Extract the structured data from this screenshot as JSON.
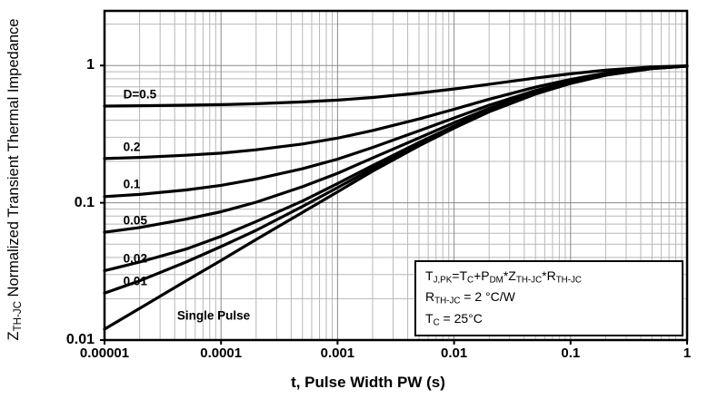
{
  "chart_data": {
    "type": "line",
    "title": "",
    "xlabel": "t, Pulse Width PW (s)",
    "ylabel_rich": [
      {
        "t": "Z"
      },
      {
        "t": "TH-JC",
        "sub": true
      },
      {
        "t": " Normalized Transient Thermal Impedance"
      }
    ],
    "grid": true,
    "x_axis": {
      "scale": "log",
      "min": 1e-05,
      "max": 1,
      "ticks": [
        {
          "v": 1e-05,
          "label": "0.00001"
        },
        {
          "v": 0.0001,
          "label": "0.0001"
        },
        {
          "v": 0.001,
          "label": "0.001"
        },
        {
          "v": 0.01,
          "label": "0.01"
        },
        {
          "v": 0.1,
          "label": "0.1"
        },
        {
          "v": 1,
          "label": "1"
        }
      ]
    },
    "y_axis": {
      "scale": "log",
      "min": 0.01,
      "max": 2.5,
      "ticks": [
        {
          "v": 1,
          "label": "1"
        },
        {
          "v": 0.1,
          "label": "0.1"
        },
        {
          "v": 0.01,
          "label": "0.01"
        }
      ]
    },
    "x": [
      1e-05,
      2e-05,
      5e-05,
      0.0001,
      0.0002,
      0.0005,
      0.001,
      0.002,
      0.005,
      0.01,
      0.02,
      0.05,
      0.1,
      0.2,
      0.5,
      1
    ],
    "series": [
      {
        "name": "D=0.5",
        "label_x": 1.45e-05,
        "label_y": 0.62,
        "values": [
          0.506,
          0.509,
          0.514,
          0.519,
          0.527,
          0.543,
          0.56,
          0.585,
          0.63,
          0.675,
          0.73,
          0.81,
          0.87,
          0.925,
          0.975,
          0.995
        ]
      },
      {
        "name": "0.2",
        "label_x": 1.45e-05,
        "label_y": 0.255,
        "values": [
          0.21,
          0.214,
          0.222,
          0.23,
          0.243,
          0.268,
          0.296,
          0.336,
          0.408,
          0.48,
          0.568,
          0.696,
          0.792,
          0.88,
          0.96,
          0.992
        ]
      },
      {
        "name": "0.1",
        "label_x": 1.45e-05,
        "label_y": 0.136,
        "values": [
          0.111,
          0.115,
          0.124,
          0.134,
          0.149,
          0.177,
          0.208,
          0.253,
          0.334,
          0.415,
          0.514,
          0.658,
          0.766,
          0.865,
          0.955,
          0.991
        ]
      },
      {
        "name": "0.05",
        "label_x": 1.45e-05,
        "label_y": 0.0745,
        "values": [
          0.061,
          0.066,
          0.076,
          0.086,
          0.101,
          0.131,
          0.164,
          0.212,
          0.297,
          0.383,
          0.487,
          0.639,
          0.753,
          0.858,
          0.953,
          0.991
        ]
      },
      {
        "name": "0.02",
        "label_x": 1.45e-05,
        "label_y": 0.0395,
        "values": [
          0.032,
          0.037,
          0.046,
          0.057,
          0.073,
          0.103,
          0.138,
          0.187,
          0.275,
          0.363,
          0.471,
          0.628,
          0.745,
          0.853,
          0.951,
          0.99
        ]
      },
      {
        "name": "0.01",
        "label_x": 1.45e-05,
        "label_y": 0.027,
        "values": [
          0.022,
          0.027,
          0.037,
          0.048,
          0.063,
          0.094,
          0.129,
          0.178,
          0.267,
          0.357,
          0.465,
          0.624,
          0.743,
          0.852,
          0.951,
          0.99
        ]
      },
      {
        "name": "Single Pulse",
        "label_x": 4.2e-05,
        "label_y": 0.015,
        "values": [
          0.012,
          0.017,
          0.027,
          0.038,
          0.054,
          0.085,
          0.12,
          0.17,
          0.26,
          0.35,
          0.46,
          0.62,
          0.74,
          0.85,
          0.95,
          0.99
        ]
      }
    ],
    "annotation_box": {
      "lines_rich": [
        [
          {
            "t": "T"
          },
          {
            "t": "J,PK",
            "sub": true
          },
          {
            "t": "=T"
          },
          {
            "t": "C",
            "sub": true
          },
          {
            "t": "+P"
          },
          {
            "t": "DM",
            "sub": true
          },
          {
            "t": "*Z"
          },
          {
            "t": "TH-JC",
            "sub": true
          },
          {
            "t": "*R"
          },
          {
            "t": "TH-JC",
            "sub": true
          }
        ],
        [
          {
            "t": "R"
          },
          {
            "t": "TH-JC",
            "sub": true
          },
          {
            "t": " = 2 °C/W"
          }
        ],
        [
          {
            "t": "T"
          },
          {
            "t": "C",
            "sub": true
          },
          {
            "t": " = 25°C"
          }
        ]
      ]
    },
    "colors": {
      "curve": "#000000",
      "grid_minor": "#b8b8b8",
      "grid_major": "#8a8a8a",
      "axis": "#000000",
      "background": "#ffffff"
    }
  }
}
